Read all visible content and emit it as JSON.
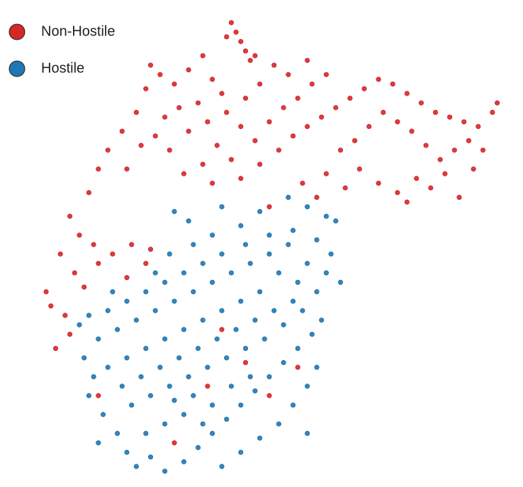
{
  "chart_data": {
    "type": "scatter",
    "legend": "upper left",
    "grid": false,
    "xlim": [
      0,
      100
    ],
    "ylim": [
      0,
      100
    ],
    "series": [
      {
        "name": "Non-Hostile",
        "color": "#d62728",
        "x": [
          42,
          43,
          44,
          45,
          41,
          46,
          47,
          25,
          27,
          24,
          30,
          33,
          36,
          38,
          40,
          35,
          31,
          28,
          22,
          19,
          16,
          14,
          12,
          20,
          23,
          26,
          29,
          33,
          37,
          41,
          44,
          47,
          50,
          53,
          56,
          59,
          62,
          58,
          54,
          51,
          48,
          45,
          39,
          42,
          36,
          32,
          38,
          44,
          48,
          52,
          55,
          58,
          61,
          64,
          67,
          70,
          73,
          76,
          79,
          82,
          85,
          88,
          91,
          94,
          97,
          98,
          92,
          89,
          86,
          83,
          80,
          77,
          74,
          71,
          68,
          65,
          69,
          73,
          77,
          81,
          84,
          87,
          90,
          93,
          95,
          79,
          66,
          62,
          60,
          57,
          50,
          8,
          10,
          13,
          6,
          9,
          14,
          17,
          21,
          25,
          24,
          20,
          4,
          7,
          3,
          8,
          5,
          11,
          40,
          45,
          37,
          50,
          14,
          30,
          56
        ],
        "y": [
          97,
          95,
          93,
          91,
          94,
          89,
          90,
          88,
          86,
          83,
          84,
          87,
          90,
          85,
          82,
          80,
          79,
          77,
          78,
          74,
          70,
          66,
          61,
          66,
          71,
          73,
          70,
          74,
          76,
          78,
          75,
          72,
          76,
          79,
          81,
          84,
          86,
          89,
          86,
          88,
          84,
          81,
          71,
          68,
          67,
          65,
          63,
          64,
          67,
          70,
          73,
          75,
          77,
          79,
          81,
          83,
          85,
          84,
          82,
          80,
          78,
          77,
          76,
          75,
          78,
          80,
          72,
          70,
          68,
          71,
          74,
          76,
          78,
          75,
          72,
          70,
          66,
          63,
          61,
          64,
          62,
          65,
          60,
          66,
          70,
          59,
          62,
          65,
          60,
          63,
          58,
          56,
          52,
          50,
          48,
          44,
          46,
          48,
          50,
          49,
          46,
          43,
          37,
          35,
          40,
          31,
          28,
          41,
          32,
          25,
          20,
          18,
          18,
          8,
          24
        ]
      },
      {
        "name": "Hostile",
        "color": "#1f77b4",
        "x": [
          30,
          33,
          40,
          48,
          54,
          58,
          62,
          64,
          55,
          50,
          45,
          40,
          36,
          32,
          28,
          24,
          20,
          16,
          12,
          10,
          14,
          18,
          22,
          26,
          30,
          34,
          38,
          42,
          46,
          50,
          54,
          58,
          62,
          65,
          60,
          56,
          52,
          48,
          44,
          40,
          36,
          32,
          28,
          24,
          20,
          16,
          13,
          12,
          15,
          18,
          20,
          22,
          25,
          28,
          32,
          35,
          38,
          41,
          44,
          47,
          50,
          53,
          56,
          59,
          61,
          57,
          53,
          49,
          45,
          41,
          37,
          33,
          29,
          25,
          21,
          19,
          23,
          27,
          31,
          35,
          39,
          43,
          47,
          51,
          55,
          58,
          55,
          52,
          48,
          44,
          40,
          36,
          32,
          28,
          24,
          30,
          34,
          38,
          42,
          46,
          26,
          29,
          34,
          38,
          44,
          60,
          63,
          17,
          11,
          14,
          58,
          60
        ],
        "y": [
          57,
          55,
          58,
          57,
          60,
          58,
          56,
          55,
          53,
          52,
          50,
          48,
          46,
          44,
          42,
          40,
          38,
          36,
          35,
          33,
          30,
          32,
          34,
          36,
          38,
          40,
          42,
          44,
          46,
          48,
          50,
          46,
          44,
          42,
          40,
          42,
          44,
          40,
          38,
          36,
          34,
          32,
          30,
          28,
          26,
          24,
          22,
          18,
          14,
          10,
          6,
          3,
          5,
          2,
          4,
          7,
          10,
          13,
          16,
          19,
          22,
          25,
          28,
          31,
          34,
          36,
          33,
          30,
          28,
          26,
          24,
          22,
          20,
          18,
          16,
          20,
          22,
          24,
          26,
          28,
          30,
          32,
          34,
          36,
          38,
          20,
          16,
          12,
          9,
          6,
          3,
          12,
          14,
          12,
          10,
          17,
          18,
          16,
          20,
          22,
          44,
          48,
          50,
          52,
          54,
          51,
          48,
          40,
          26,
          8,
          10,
          24
        ]
      }
    ]
  }
}
